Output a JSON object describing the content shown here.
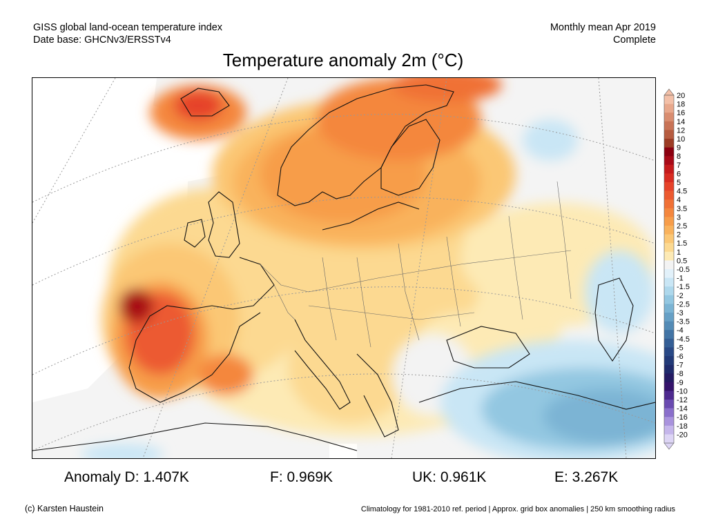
{
  "header": {
    "source_line1": "GISS global land-ocean temperature index",
    "source_line2": "Date base: GHCNv3/ERSSTv4",
    "period_line1": "Monthly mean Apr 2019",
    "period_line2": "Complete"
  },
  "title": "Temperature anomaly 2m (°C)",
  "legend": {
    "labels": [
      "20",
      "18",
      "16",
      "14",
      "12",
      "10",
      "9",
      "8",
      "7",
      "6",
      "5",
      "4.5",
      "4",
      "3.5",
      "3",
      "2.5",
      "2",
      "1.5",
      "1",
      "0.5",
      "-0.5",
      "-1",
      "-1.5",
      "-2",
      "-2.5",
      "-3",
      "-3.5",
      "-4",
      "-4.5",
      "-5",
      "-6",
      "-7",
      "-8",
      "-9",
      "-10",
      "-12",
      "-14",
      "-16",
      "-18",
      "-20"
    ],
    "colors": [
      "#f3c0a8",
      "#e8a88c",
      "#d98d70",
      "#c87356",
      "#b65c40",
      "#9c3c25",
      "#8b0010",
      "#a80a18",
      "#c51a1c",
      "#d82c22",
      "#e6432a",
      "#ec5a30",
      "#f07136",
      "#f4873e",
      "#f79d4a",
      "#f9b25c",
      "#fbc775",
      "#fcd991",
      "#fdeab5",
      "#f3f3f3",
      "#e2f1fa",
      "#c9e6f5",
      "#aed8ec",
      "#93c7e1",
      "#7bb4d4",
      "#66a0c6",
      "#538bb6",
      "#4274a5",
      "#345e95",
      "#294986",
      "#223a78",
      "#1f2b6c",
      "#241b63",
      "#34136b",
      "#4e2a8f",
      "#6a4bb0",
      "#8a6fcb",
      "#a993dd",
      "#c5b6eb",
      "#ddd5f5"
    ]
  },
  "stats": {
    "d": "Anomaly D: 1.407K",
    "f": "F: 0.969K",
    "uk": "UK: 0.961K",
    "e": "E: 3.267K"
  },
  "footer": {
    "credit": "(c) Karsten Haustein",
    "note": "Climatology for 1981-2010 ref. period | Approx. grid box anomalies | 250 km smoothing radius"
  }
}
